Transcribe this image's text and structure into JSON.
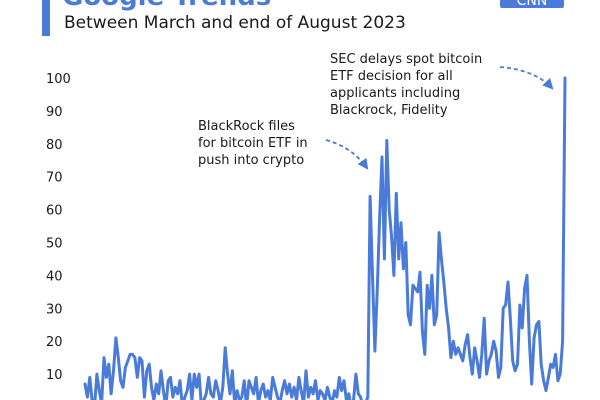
{
  "header": {
    "title": "Google Trends",
    "subtitle": "Between March and end of August 2023",
    "badge": "CNN"
  },
  "chart_data": {
    "type": "line",
    "title": "Google Trends",
    "subtitle": "Between March and end of August 2023",
    "xlabel": "",
    "ylabel": "",
    "ylim": [
      0,
      100
    ],
    "yticks": [
      10,
      20,
      30,
      40,
      50,
      60,
      70,
      80,
      90,
      100
    ],
    "grid": false,
    "color": "#4a7bd8",
    "series": [
      {
        "values": [
          7,
          3,
          9,
          2,
          0,
          10,
          5,
          1,
          15,
          9,
          13,
          4,
          11,
          21,
          15,
          8,
          6,
          12,
          14,
          16,
          16,
          15,
          9,
          15,
          14,
          3,
          11,
          13,
          6,
          2,
          7,
          4,
          11,
          5,
          0,
          8,
          9,
          3,
          6,
          4,
          8,
          0,
          3,
          5,
          10,
          2,
          10,
          6,
          10,
          0,
          2,
          4,
          9,
          4,
          3,
          8,
          5,
          1,
          6,
          18,
          10,
          4,
          11,
          1,
          5,
          2,
          3,
          8,
          0,
          8,
          6,
          4,
          9,
          1,
          5,
          7,
          3,
          5,
          2,
          9,
          6,
          3,
          1,
          5,
          8,
          4,
          7,
          3,
          6,
          2,
          9,
          5,
          1,
          11,
          3,
          6,
          4,
          8,
          2,
          5,
          4,
          2,
          6,
          3,
          1,
          5,
          3,
          9,
          5,
          8,
          2,
          4,
          0,
          2,
          10,
          4,
          3,
          0,
          1,
          3,
          64,
          40,
          17,
          36,
          58,
          76,
          45,
          81,
          60,
          52,
          40,
          65,
          45,
          56,
          42,
          50,
          28,
          25,
          37,
          36,
          35,
          41,
          23,
          16,
          37,
          30,
          40,
          25,
          28,
          53,
          45,
          38,
          30,
          24,
          15,
          20,
          16,
          18,
          16,
          14,
          19,
          22,
          15,
          10,
          18,
          14,
          9,
          16,
          27,
          10,
          14,
          16,
          20,
          17,
          9,
          12,
          30,
          31,
          38,
          27,
          14,
          11,
          13,
          31,
          24,
          36,
          40,
          20,
          7,
          21,
          25,
          26,
          13,
          8,
          5,
          9,
          13,
          12,
          16,
          8,
          10,
          20,
          100
        ]
      }
    ],
    "annotations": [
      {
        "lines": [
          "BlackRock files",
          "for bitcoin ETF in",
          "push into crypto"
        ]
      },
      {
        "lines": [
          "SEC delays spot bitcoin",
          "ETF decision for all",
          "applicants including",
          "Blackrock, Fidelity"
        ]
      }
    ]
  }
}
